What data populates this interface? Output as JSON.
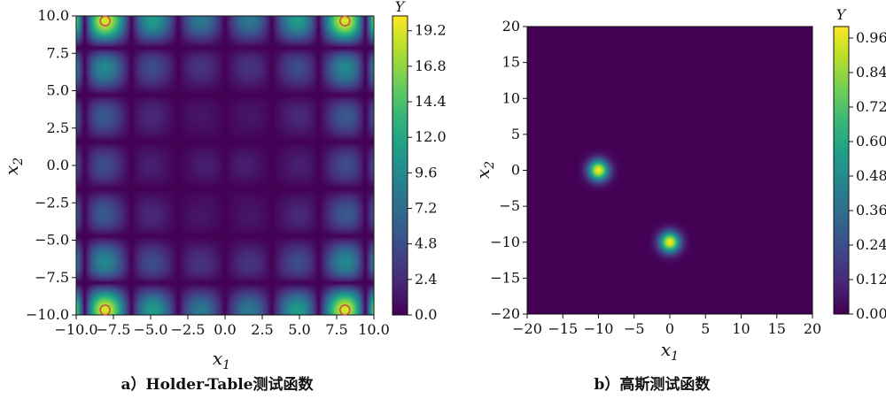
{
  "chart_data": [
    {
      "type": "heatmap",
      "function": "holder-table",
      "caption": "a）Holder-Table测试函数",
      "xlabel": "x",
      "xlabel_sub": "1",
      "ylabel": "x",
      "ylabel_sub": "2",
      "xlim": [
        -10.0,
        10.0
      ],
      "ylim": [
        -10.0,
        10.0
      ],
      "xticks": [
        "−10.0",
        "−7.5",
        "−5.0",
        "−2.5",
        "0.0",
        "2.5",
        "5.0",
        "7.5",
        "10.0"
      ],
      "yticks": [
        "−10.0",
        "−7.5",
        "−5.0",
        "−2.5",
        "0.0",
        "2.5",
        "5.0",
        "7.5",
        "10.0"
      ],
      "xtick_values": [
        -10,
        -7.5,
        -5,
        -2.5,
        0,
        2.5,
        5,
        7.5,
        10
      ],
      "ytick_values": [
        -10,
        -7.5,
        -5,
        -2.5,
        0,
        2.5,
        5,
        7.5,
        10
      ],
      "colorbar": {
        "title": "Y",
        "range": [
          0.0,
          20.2
        ],
        "ticks": [
          "0.0",
          "2.4",
          "4.8",
          "7.2",
          "9.6",
          "12.0",
          "14.4",
          "16.8",
          "19.2"
        ],
        "tick_values": [
          0,
          2.4,
          4.8,
          7.2,
          9.6,
          12.0,
          14.4,
          16.8,
          19.2
        ]
      },
      "maxima": [
        {
          "x": -8.055,
          "y": 9.665
        },
        {
          "x": 8.055,
          "y": 9.665
        },
        {
          "x": -8.055,
          "y": -9.665
        },
        {
          "x": 8.055,
          "y": -9.665
        }
      ],
      "marker_color": "#c44e52"
    },
    {
      "type": "heatmap",
      "function": "gaussian",
      "caption": "b）高斯测试函数",
      "xlabel": "x",
      "xlabel_sub": "1",
      "ylabel": "x",
      "ylabel_sub": "2",
      "xlim": [
        -20,
        20
      ],
      "ylim": [
        -20,
        20
      ],
      "xticks": [
        "−20",
        "−15",
        "−10",
        "−5",
        "0",
        "5",
        "10",
        "15",
        "20"
      ],
      "yticks": [
        "−20",
        "−15",
        "−10",
        "−5",
        "0",
        "5",
        "10",
        "15",
        "20"
      ],
      "xtick_values": [
        -20,
        -15,
        -10,
        -5,
        0,
        5,
        10,
        15,
        20
      ],
      "ytick_values": [
        -20,
        -15,
        -10,
        -5,
        0,
        5,
        10,
        15,
        20
      ],
      "colorbar": {
        "title": "Y",
        "range": [
          0.0,
          1.0
        ],
        "ticks": [
          "0.00",
          "0.12",
          "0.24",
          "0.36",
          "0.48",
          "0.60",
          "0.72",
          "0.84",
          "0.96"
        ],
        "tick_values": [
          0,
          0.12,
          0.24,
          0.36,
          0.48,
          0.6,
          0.72,
          0.84,
          0.96
        ]
      },
      "peaks": [
        {
          "x": -10,
          "y": 0,
          "amplitude": 1.0,
          "sigma": 1.0
        },
        {
          "x": 0,
          "y": -10,
          "amplitude": 1.0,
          "sigma": 1.0
        }
      ]
    }
  ],
  "colormap": "viridis"
}
